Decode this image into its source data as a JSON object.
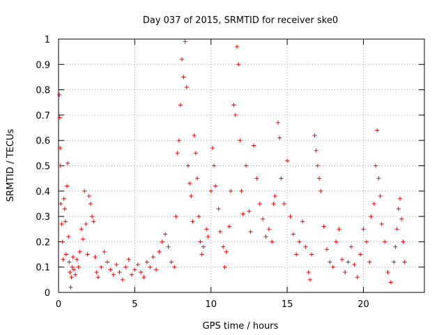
{
  "chart_data": {
    "type": "scatter",
    "title": "Day 037 of 2015, SRMTID for receiver ske0",
    "xlabel": "GPS time / hours",
    "ylabel": "SRMTID / TECUs",
    "xlim": [
      0,
      24
    ],
    "ylim": [
      0,
      1
    ],
    "xticks": [
      0,
      5,
      10,
      15,
      20
    ],
    "yticks": [
      0,
      0.1,
      0.2,
      0.3,
      0.4,
      0.5,
      0.6,
      0.7,
      0.8,
      0.9,
      1
    ],
    "xtick_labels": [
      "0",
      "5",
      "10",
      "15",
      "20"
    ],
    "ytick_labels": [
      "0",
      "0.1",
      "0.2",
      "0.3",
      "0.4",
      "0.5",
      "0.6",
      "0.7",
      "0.8",
      "0.9",
      "1"
    ],
    "grid": true,
    "marker": "+",
    "color": "#ff0000",
    "series": [
      {
        "name": "SRMTID",
        "points": [
          [
            0.05,
            0.78
          ],
          [
            0.08,
            0.69
          ],
          [
            0.1,
            0.57
          ],
          [
            0.12,
            0.5
          ],
          [
            0.15,
            0.35
          ],
          [
            0.2,
            0.27
          ],
          [
            0.25,
            0.2
          ],
          [
            0.3,
            0.13
          ],
          [
            0.35,
            0.37
          ],
          [
            0.4,
            0.33
          ],
          [
            0.45,
            0.28
          ],
          [
            0.5,
            0.15
          ],
          [
            0.55,
            0.42
          ],
          [
            0.6,
            0.51
          ],
          [
            0.65,
            0.22
          ],
          [
            0.7,
            0.12
          ],
          [
            0.75,
            0.08
          ],
          [
            0.8,
            0.02
          ],
          [
            0.85,
            0.06
          ],
          [
            0.9,
            0.1
          ],
          [
            0.95,
            0.14
          ],
          [
            1.0,
            0.09
          ],
          [
            1.1,
            0.07
          ],
          [
            1.2,
            0.13
          ],
          [
            1.3,
            0.1
          ],
          [
            1.4,
            0.16
          ],
          [
            1.5,
            0.25
          ],
          [
            1.6,
            0.21
          ],
          [
            1.7,
            0.4
          ],
          [
            1.8,
            0.27
          ],
          [
            1.9,
            0.15
          ],
          [
            2.0,
            0.38
          ],
          [
            2.1,
            0.35
          ],
          [
            2.2,
            0.3
          ],
          [
            2.3,
            0.28
          ],
          [
            2.4,
            0.14
          ],
          [
            2.5,
            0.08
          ],
          [
            2.6,
            0.06
          ],
          [
            2.8,
            0.1
          ],
          [
            3.0,
            0.16
          ],
          [
            3.2,
            0.12
          ],
          [
            3.4,
            0.09
          ],
          [
            3.6,
            0.07
          ],
          [
            3.8,
            0.11
          ],
          [
            4.0,
            0.08
          ],
          [
            4.2,
            0.05
          ],
          [
            4.4,
            0.1
          ],
          [
            4.6,
            0.13
          ],
          [
            4.8,
            0.07
          ],
          [
            5.0,
            0.09
          ],
          [
            5.2,
            0.11
          ],
          [
            5.4,
            0.08
          ],
          [
            5.6,
            0.06
          ],
          [
            5.8,
            0.12
          ],
          [
            6.0,
            0.1
          ],
          [
            6.2,
            0.14
          ],
          [
            6.4,
            0.09
          ],
          [
            6.6,
            0.16
          ],
          [
            6.8,
            0.2
          ],
          [
            7.0,
            0.23
          ],
          [
            7.2,
            0.18
          ],
          [
            7.4,
            0.12
          ],
          [
            7.6,
            0.1
          ],
          [
            7.7,
            0.3
          ],
          [
            7.8,
            0.55
          ],
          [
            7.9,
            0.6
          ],
          [
            8.0,
            0.74
          ],
          [
            8.1,
            0.92
          ],
          [
            8.2,
            0.85
          ],
          [
            8.3,
            0.99
          ],
          [
            8.4,
            0.81
          ],
          [
            8.5,
            0.5
          ],
          [
            8.6,
            0.43
          ],
          [
            8.7,
            0.38
          ],
          [
            8.8,
            0.28
          ],
          [
            8.9,
            0.62
          ],
          [
            9.0,
            0.55
          ],
          [
            9.1,
            0.45
          ],
          [
            9.2,
            0.3
          ],
          [
            9.3,
            0.2
          ],
          [
            9.4,
            0.15
          ],
          [
            9.5,
            0.18
          ],
          [
            9.7,
            0.25
          ],
          [
            9.8,
            0.22
          ],
          [
            10.0,
            0.4
          ],
          [
            10.1,
            0.57
          ],
          [
            10.2,
            0.5
          ],
          [
            10.3,
            0.42
          ],
          [
            10.5,
            0.33
          ],
          [
            10.6,
            0.24
          ],
          [
            10.8,
            0.18
          ],
          [
            10.9,
            0.1
          ],
          [
            11.0,
            0.16
          ],
          [
            11.2,
            0.26
          ],
          [
            11.3,
            0.4
          ],
          [
            11.5,
            0.74
          ],
          [
            11.6,
            0.7
          ],
          [
            11.7,
            0.97
          ],
          [
            11.8,
            0.9
          ],
          [
            11.9,
            0.6
          ],
          [
            12.0,
            0.4
          ],
          [
            12.1,
            0.31
          ],
          [
            12.3,
            0.5
          ],
          [
            12.5,
            0.32
          ],
          [
            12.6,
            0.24
          ],
          [
            12.8,
            0.58
          ],
          [
            13.0,
            0.45
          ],
          [
            13.2,
            0.35
          ],
          [
            13.4,
            0.29
          ],
          [
            13.6,
            0.22
          ],
          [
            13.8,
            0.25
          ],
          [
            14.0,
            0.2
          ],
          [
            14.1,
            0.35
          ],
          [
            14.2,
            0.38
          ],
          [
            14.4,
            0.67
          ],
          [
            14.5,
            0.61
          ],
          [
            14.6,
            0.45
          ],
          [
            14.8,
            0.35
          ],
          [
            15.0,
            0.52
          ],
          [
            15.2,
            0.3
          ],
          [
            15.4,
            0.23
          ],
          [
            15.6,
            0.15
          ],
          [
            15.8,
            0.2
          ],
          [
            16.0,
            0.28
          ],
          [
            16.2,
            0.18
          ],
          [
            16.4,
            0.08
          ],
          [
            16.5,
            0.05
          ],
          [
            16.6,
            0.15
          ],
          [
            16.8,
            0.62
          ],
          [
            16.9,
            0.56
          ],
          [
            17.0,
            0.5
          ],
          [
            17.1,
            0.45
          ],
          [
            17.2,
            0.4
          ],
          [
            17.4,
            0.26
          ],
          [
            17.6,
            0.17
          ],
          [
            17.8,
            0.12
          ],
          [
            18.0,
            0.1
          ],
          [
            18.2,
            0.2
          ],
          [
            18.4,
            0.25
          ],
          [
            18.6,
            0.13
          ],
          [
            18.8,
            0.08
          ],
          [
            19.0,
            0.12
          ],
          [
            19.2,
            0.18
          ],
          [
            19.4,
            0.11
          ],
          [
            19.6,
            0.06
          ],
          [
            19.8,
            0.15
          ],
          [
            20.0,
            0.25
          ],
          [
            20.2,
            0.2
          ],
          [
            20.4,
            0.12
          ],
          [
            20.5,
            0.3
          ],
          [
            20.7,
            0.35
          ],
          [
            20.8,
            0.5
          ],
          [
            20.9,
            0.64
          ],
          [
            21.0,
            0.45
          ],
          [
            21.1,
            0.38
          ],
          [
            21.2,
            0.27
          ],
          [
            21.4,
            0.2
          ],
          [
            21.6,
            0.08
          ],
          [
            21.8,
            0.04
          ],
          [
            22.0,
            0.12
          ],
          [
            22.1,
            0.18
          ],
          [
            22.2,
            0.25
          ],
          [
            22.3,
            0.33
          ],
          [
            22.4,
            0.37
          ],
          [
            22.5,
            0.29
          ],
          [
            22.6,
            0.2
          ],
          [
            22.7,
            0.12
          ]
        ]
      }
    ]
  }
}
